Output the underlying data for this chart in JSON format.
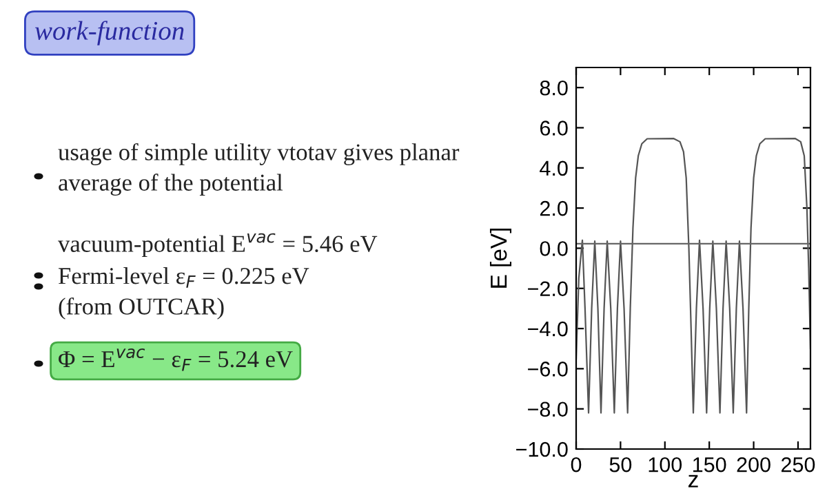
{
  "chart_data": {
    "type": "line",
    "title": "work-function",
    "xlabel": "z",
    "ylabel": "E [eV]",
    "xlim": [
      0,
      264
    ],
    "ylim": [
      -10,
      9
    ],
    "xticks": [
      0,
      50,
      100,
      150,
      200,
      250
    ],
    "yticks": [
      {
        "value": -10,
        "label": "−10.0"
      },
      {
        "value": -8,
        "label": "−8.0"
      },
      {
        "value": -6,
        "label": "−6.0"
      },
      {
        "value": -4,
        "label": "−4.0"
      },
      {
        "value": -2,
        "label": "−2.0"
      },
      {
        "value": 0,
        "label": "0.0"
      },
      {
        "value": 2,
        "label": "2.0"
      },
      {
        "value": 4,
        "label": "4.0"
      },
      {
        "value": 6,
        "label": "6.0"
      },
      {
        "value": 8,
        "label": "8.0"
      }
    ],
    "grid": false,
    "series": [
      {
        "color": "#555555",
        "x": [
          0,
          3,
          7,
          10,
          14,
          17.5,
          21,
          24.5,
          28,
          31.5,
          35,
          39,
          43,
          46.5,
          50,
          54,
          58,
          61,
          64,
          67,
          70,
          74,
          80,
          110,
          117,
          121,
          124,
          127,
          129.5,
          132,
          135.5,
          139,
          143,
          147,
          150.5,
          154,
          158,
          162,
          165.5,
          169,
          173,
          177,
          180.5,
          184,
          188,
          192,
          194.5,
          197,
          200,
          203,
          207,
          213,
          247,
          253,
          257,
          260,
          262,
          264
        ],
        "values": [
          -5.5,
          -1.5,
          0.4,
          -3,
          -8.2,
          -3,
          0.35,
          -3,
          -8.2,
          -3,
          0.35,
          -3,
          -8.2,
          -3,
          0.35,
          -3,
          -8.2,
          -3,
          1,
          3.5,
          4.6,
          5.2,
          5.45,
          5.46,
          5.3,
          4.8,
          3.5,
          0,
          -4,
          -8.2,
          -3,
          0.4,
          -3,
          -8.2,
          -3,
          0.35,
          -3,
          -8.2,
          -3,
          0.35,
          -3,
          -8.2,
          -3,
          0.35,
          -3,
          -8.2,
          -3,
          1,
          3.5,
          4.6,
          5.2,
          5.45,
          5.46,
          5.3,
          4.6,
          2,
          -1,
          -5
        ]
      }
    ],
    "ref_lines": [
      {
        "axis": "y",
        "value": 0.225,
        "color": "#666666"
      }
    ],
    "annotations": [
      "usage of simple utility vtotav gives planar\naverage of the potential",
      "vacuum-potential E$^{vac}$ = 5.46 eV",
      "Fermi-level ε$_{F}$ = 0.225 eV\n(from OUTCAR)",
      "Φ = E$^{vac}$ − ε$_{F}$ = 5.24 eV"
    ]
  }
}
